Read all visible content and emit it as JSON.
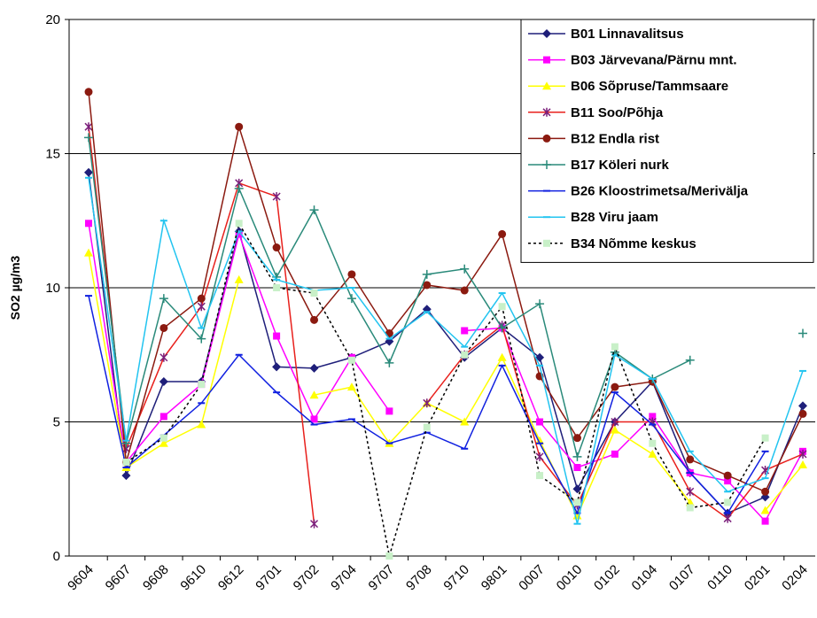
{
  "chart_data": {
    "type": "line",
    "y_label": "SO2 µg/m3",
    "categories": [
      "9604",
      "9607",
      "9608",
      "9610",
      "9612",
      "9701",
      "9702",
      "9704",
      "9707",
      "9708",
      "9710",
      "9801",
      "0007",
      "0010",
      "0102",
      "0104",
      "0107",
      "0110",
      "0201",
      "0204"
    ],
    "ylim": [
      0,
      20
    ],
    "yticks": [
      0,
      5,
      10,
      15,
      20
    ],
    "grid": true,
    "legend": "top-right",
    "series": [
      {
        "name": "B01 Linnavalitsus",
        "color": "#1f1f7a",
        "marker": "diamond",
        "values": [
          14.3,
          3.0,
          6.5,
          6.5,
          12.1,
          7.05,
          7.0,
          7.4,
          8.0,
          9.2,
          7.4,
          8.5,
          7.4,
          2.5,
          5.0,
          6.5,
          3.1,
          1.6,
          2.2,
          5.6
        ]
      },
      {
        "name": "B03 Järvevana/Pärnu mnt.",
        "color": "#ff00ff",
        "marker": "square",
        "values": [
          12.4,
          3.5,
          5.2,
          6.4,
          12.0,
          8.2,
          5.1,
          7.4,
          5.4,
          null,
          8.4,
          8.5,
          5.0,
          3.3,
          3.8,
          5.2,
          3.1,
          2.8,
          1.3,
          3.9
        ]
      },
      {
        "name": "B06 Sõpruse/Tammsaare",
        "color": "#ffff00",
        "marker": "triangle",
        "values": [
          11.3,
          3.3,
          4.2,
          4.9,
          10.3,
          null,
          6.0,
          6.3,
          4.2,
          5.7,
          5.0,
          7.4,
          4.3,
          1.5,
          4.7,
          3.8,
          2.0,
          null,
          1.7,
          3.4
        ]
      },
      {
        "name": "B11 Soo/Põhja",
        "color": "#e8201c",
        "marker": "star",
        "markerColor": "#7b1f7b",
        "values": [
          16.0,
          4.0,
          7.4,
          9.3,
          13.9,
          13.4,
          1.2,
          null,
          null,
          5.7,
          7.5,
          8.6,
          3.7,
          1.9,
          5.0,
          5.0,
          2.4,
          1.4,
          3.2,
          3.8
        ]
      },
      {
        "name": "B12 Endla rist",
        "color": "#8b1a10",
        "marker": "circle",
        "values": [
          17.3,
          3.5,
          8.5,
          9.6,
          16.0,
          11.5,
          8.8,
          10.5,
          8.3,
          10.1,
          9.9,
          12.0,
          6.7,
          4.4,
          6.3,
          6.5,
          3.6,
          3.0,
          2.4,
          5.3
        ]
      },
      {
        "name": "B17 Köleri nurk",
        "color": "#2a8a7a",
        "marker": "plus",
        "values": [
          15.6,
          4.2,
          9.6,
          8.1,
          13.7,
          10.4,
          12.9,
          9.6,
          7.2,
          10.5,
          10.7,
          8.5,
          9.4,
          3.7,
          7.6,
          6.6,
          7.3,
          null,
          null,
          8.3
        ]
      },
      {
        "name": "B26 Kloostrimetsa/Merivälja",
        "color": "#1020e0",
        "marker": "dash",
        "values": [
          9.7,
          3.3,
          4.5,
          5.7,
          7.5,
          6.1,
          4.9,
          5.1,
          4.2,
          4.6,
          4.0,
          7.1,
          4.2,
          1.6,
          6.1,
          4.9,
          3.1,
          1.6,
          3.9,
          null
        ]
      },
      {
        "name": "B28 Viru jaam",
        "color": "#22c4f0",
        "marker": "dash",
        "values": [
          14.1,
          4.3,
          12.5,
          8.5,
          12.1,
          10.3,
          9.9,
          10.0,
          8.1,
          9.1,
          7.8,
          9.8,
          7.1,
          1.2,
          7.5,
          6.6,
          3.9,
          2.4,
          2.9,
          6.9
        ]
      },
      {
        "name": "B34 Nõmme keskus",
        "color": "#000000",
        "markerColor": "#c8f0c8",
        "marker": "square",
        "dashed": true,
        "values": [
          null,
          3.5,
          4.4,
          6.4,
          12.4,
          10.0,
          9.8,
          7.3,
          0.0,
          4.8,
          7.5,
          9.3,
          3.0,
          2.0,
          7.8,
          4.2,
          1.8,
          2.0,
          4.4,
          null
        ]
      }
    ]
  }
}
